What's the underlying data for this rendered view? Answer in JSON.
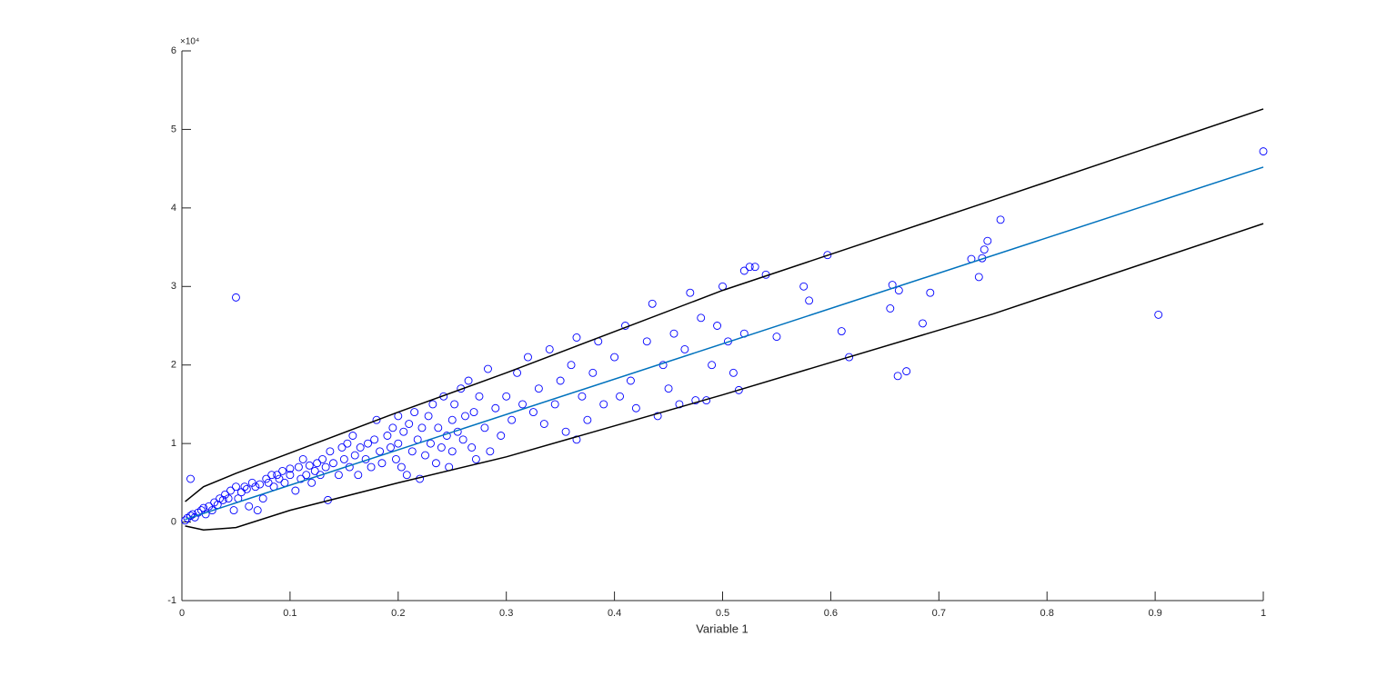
{
  "chart_data": {
    "type": "scatter",
    "xlabel": "Variable 1",
    "yscale_label": "×10⁴",
    "xlim": [
      0,
      1
    ],
    "ylim": [
      -1,
      6
    ],
    "xticks": [
      0,
      0.1,
      0.2,
      0.3,
      0.4,
      0.5,
      0.6,
      0.7,
      0.8,
      0.9,
      1
    ],
    "yticks": [
      -1,
      0,
      1,
      2,
      3,
      4,
      5,
      6
    ],
    "series": [
      {
        "mode": "markers",
        "color": "#0000ff",
        "x": [
          0.003,
          0.005,
          0.008,
          0.01,
          0.012,
          0.015,
          0.018,
          0.02,
          0.022,
          0.025,
          0.028,
          0.03,
          0.033,
          0.035,
          0.038,
          0.04,
          0.043,
          0.045,
          0.048,
          0.05,
          0.05,
          0.008,
          0.052,
          0.055,
          0.058,
          0.06,
          0.062,
          0.065,
          0.068,
          0.07,
          0.072,
          0.075,
          0.078,
          0.08,
          0.083,
          0.085,
          0.088,
          0.09,
          0.093,
          0.095,
          0.1,
          0.1,
          0.105,
          0.108,
          0.11,
          0.112,
          0.115,
          0.118,
          0.12,
          0.123,
          0.125,
          0.128,
          0.13,
          0.133,
          0.135,
          0.137,
          0.14,
          0.145,
          0.148,
          0.15,
          0.153,
          0.155,
          0.158,
          0.16,
          0.163,
          0.165,
          0.17,
          0.172,
          0.175,
          0.178,
          0.18,
          0.183,
          0.185,
          0.19,
          0.193,
          0.195,
          0.198,
          0.2,
          0.2,
          0.203,
          0.205,
          0.208,
          0.21,
          0.213,
          0.215,
          0.218,
          0.22,
          0.222,
          0.225,
          0.228,
          0.23,
          0.232,
          0.235,
          0.237,
          0.24,
          0.242,
          0.245,
          0.247,
          0.25,
          0.25,
          0.252,
          0.255,
          0.258,
          0.26,
          0.262,
          0.265,
          0.268,
          0.27,
          0.272,
          0.275,
          0.28,
          0.283,
          0.285,
          0.29,
          0.295,
          0.3,
          0.305,
          0.31,
          0.315,
          0.32,
          0.325,
          0.33,
          0.335,
          0.34,
          0.345,
          0.35,
          0.355,
          0.36,
          0.365,
          0.365,
          0.37,
          0.375,
          0.38,
          0.385,
          0.39,
          0.4,
          0.405,
          0.41,
          0.415,
          0.42,
          0.43,
          0.435,
          0.44,
          0.445,
          0.45,
          0.455,
          0.46,
          0.465,
          0.47,
          0.475,
          0.48,
          0.485,
          0.49,
          0.495,
          0.5,
          0.505,
          0.51,
          0.515,
          0.52,
          0.52,
          0.525,
          0.53,
          0.54,
          0.55,
          0.575,
          0.58,
          0.597,
          0.61,
          0.617,
          0.655,
          0.657,
          0.662,
          0.663,
          0.67,
          0.685,
          0.692,
          0.73,
          0.737,
          0.74,
          0.742,
          0.745,
          0.757,
          0.903,
          1.0
        ],
        "values": [
          0.02,
          0.05,
          0.08,
          0.1,
          0.06,
          0.12,
          0.15,
          0.18,
          0.1,
          0.2,
          0.15,
          0.25,
          0.22,
          0.3,
          0.28,
          0.35,
          0.3,
          0.4,
          0.15,
          0.45,
          2.86,
          0.55,
          0.3,
          0.38,
          0.45,
          0.42,
          0.2,
          0.5,
          0.45,
          0.15,
          0.48,
          0.3,
          0.55,
          0.5,
          0.6,
          0.45,
          0.6,
          0.55,
          0.65,
          0.5,
          0.6,
          0.68,
          0.4,
          0.7,
          0.55,
          0.8,
          0.6,
          0.72,
          0.5,
          0.65,
          0.75,
          0.6,
          0.8,
          0.7,
          0.28,
          0.9,
          0.75,
          0.6,
          0.95,
          0.8,
          1.0,
          0.7,
          1.1,
          0.85,
          0.6,
          0.95,
          0.8,
          1.0,
          0.7,
          1.05,
          1.3,
          0.9,
          0.75,
          1.1,
          0.95,
          1.2,
          0.8,
          1.0,
          1.35,
          0.7,
          1.15,
          0.6,
          1.25,
          0.9,
          1.4,
          1.05,
          0.55,
          1.2,
          0.85,
          1.35,
          1.0,
          1.5,
          0.75,
          1.2,
          0.95,
          1.6,
          1.1,
          0.7,
          1.3,
          0.9,
          1.5,
          1.15,
          1.7,
          1.05,
          1.35,
          1.8,
          0.95,
          1.4,
          0.8,
          1.6,
          1.2,
          1.95,
          0.9,
          1.45,
          1.1,
          1.6,
          1.3,
          1.9,
          1.5,
          2.1,
          1.4,
          1.7,
          1.25,
          2.2,
          1.5,
          1.8,
          1.15,
          2.0,
          1.05,
          2.35,
          1.6,
          1.3,
          1.9,
          2.3,
          1.5,
          2.1,
          1.6,
          2.5,
          1.8,
          1.45,
          2.3,
          2.78,
          1.35,
          2.0,
          1.7,
          2.4,
          1.5,
          2.2,
          2.92,
          1.55,
          2.6,
          1.55,
          2.0,
          2.5,
          3.0,
          2.3,
          1.9,
          1.68,
          2.4,
          3.2,
          3.25,
          3.25,
          3.15,
          2.36,
          3.0,
          2.82,
          3.4,
          2.43,
          2.1,
          2.72,
          3.02,
          1.86,
          2.95,
          1.92,
          2.53,
          2.92,
          3.35,
          3.12,
          3.36,
          3.47,
          3.58,
          3.85,
          2.64,
          4.72
        ]
      },
      {
        "mode": "line",
        "color": "#0072bd",
        "x": [
          0.003,
          1
        ],
        "values": [
          0.0335,
          4.52
        ]
      },
      {
        "mode": "line",
        "color": "#000000",
        "x": [
          0.003,
          0.02,
          0.05,
          0.1,
          0.2,
          0.3,
          0.5,
          0.75,
          1
        ],
        "values": [
          0.26,
          0.45,
          0.62,
          0.88,
          1.4,
          1.9,
          2.95,
          4.1,
          5.26
        ]
      },
      {
        "mode": "line",
        "color": "#000000",
        "x": [
          0.003,
          0.02,
          0.05,
          0.1,
          0.2,
          0.3,
          0.5,
          0.75,
          1
        ],
        "values": [
          -0.05,
          -0.1,
          -0.07,
          0.15,
          0.5,
          0.83,
          1.62,
          2.65,
          3.8
        ]
      }
    ]
  }
}
